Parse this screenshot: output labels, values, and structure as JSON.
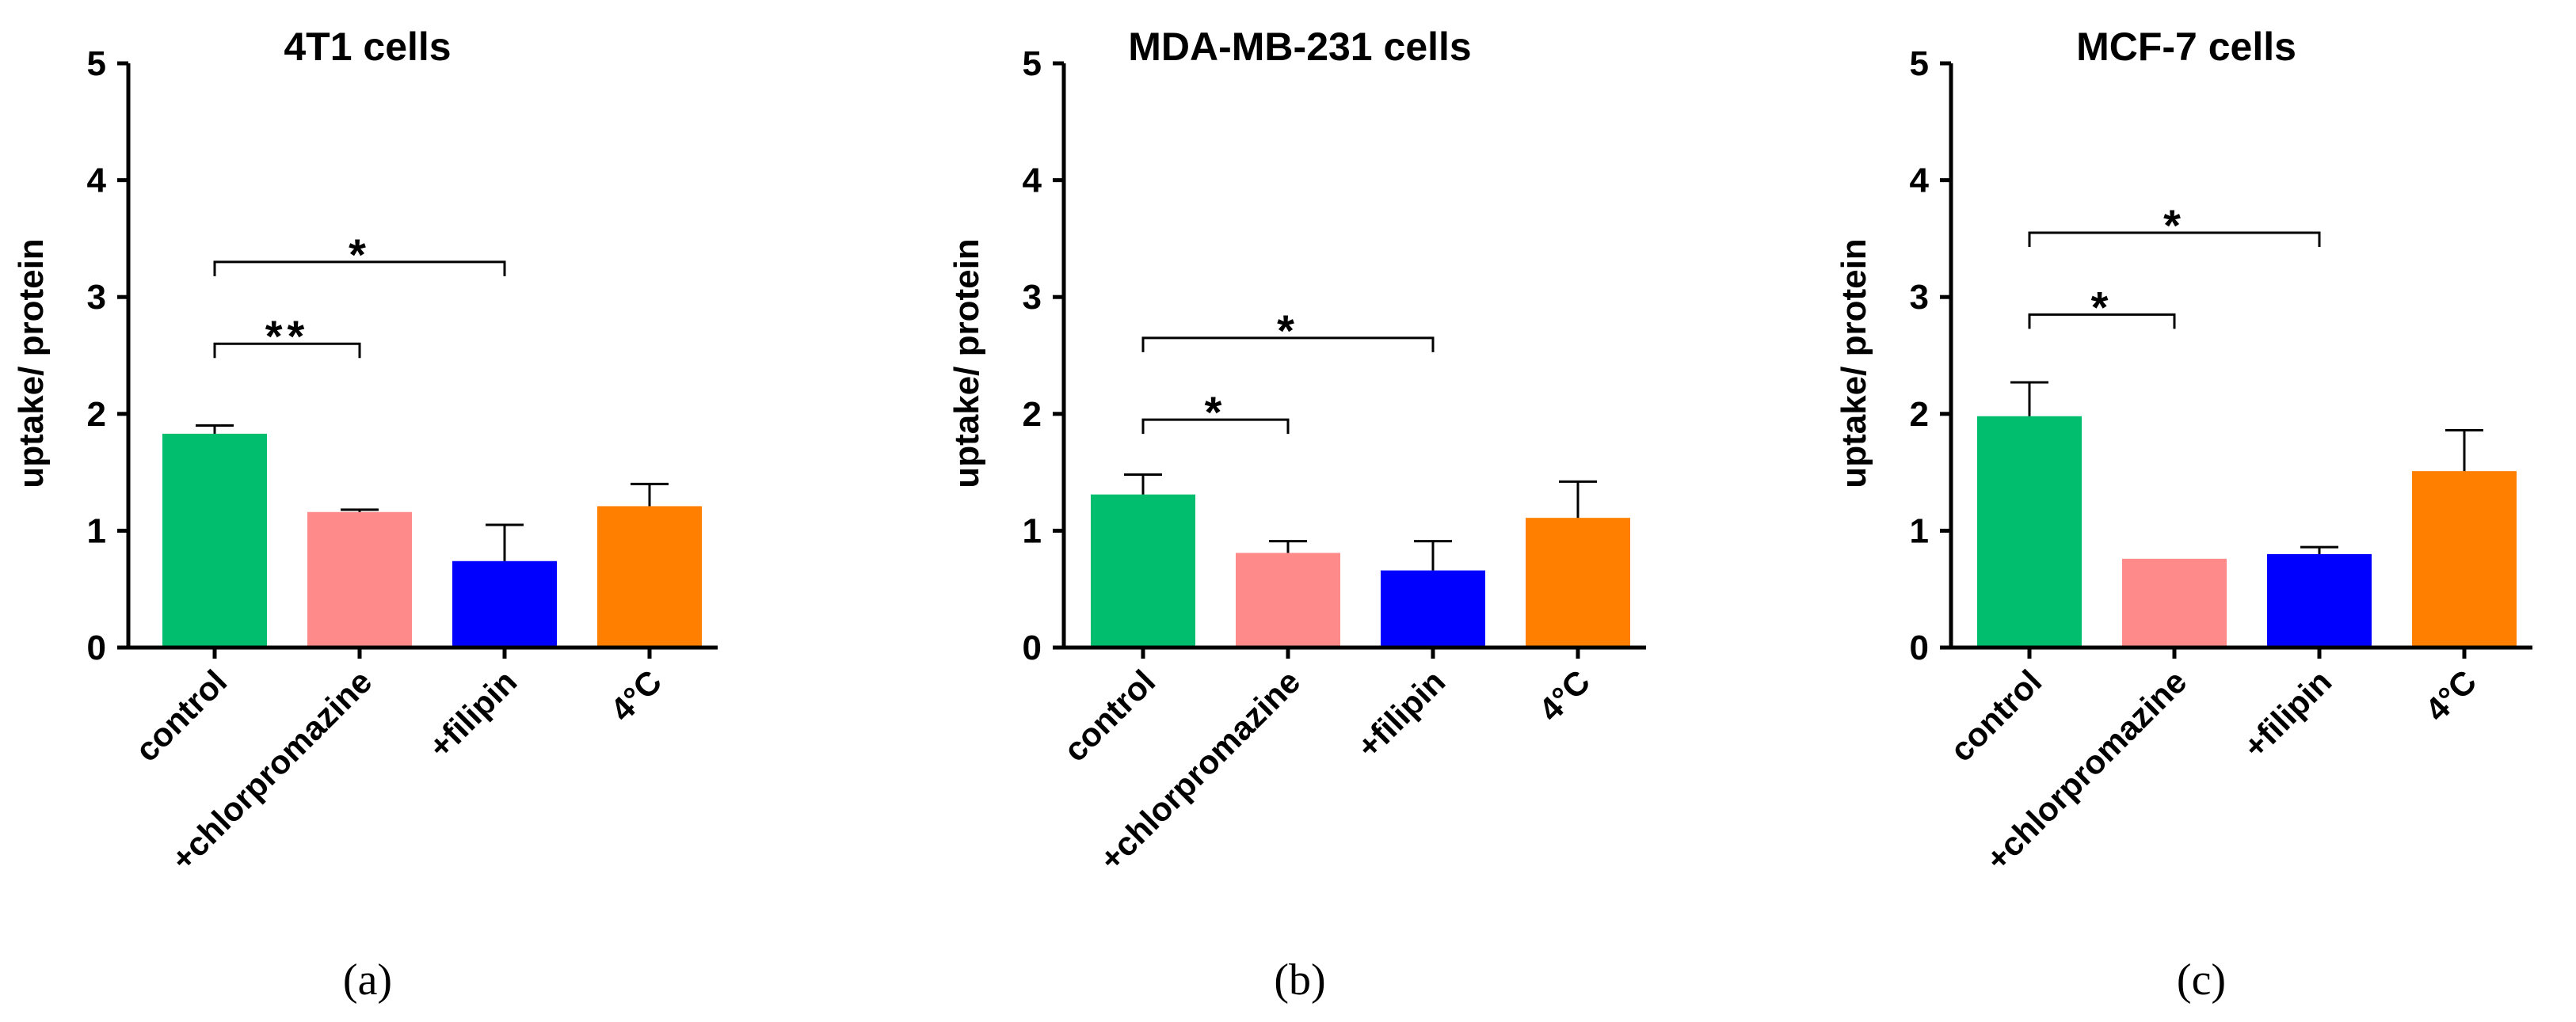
{
  "chart_data": [
    {
      "type": "bar",
      "panel_label": "(a)",
      "title": "4T1 cells",
      "ylabel": "uptake/ protein",
      "xlabel": "",
      "ylim": [
        0,
        5
      ],
      "yticks": [
        "0",
        "1",
        "2",
        "3",
        "4",
        "5"
      ],
      "categories": [
        "control",
        "+chlorpromazine",
        "+filipin",
        "4°C"
      ],
      "colors": [
        "#00be6e",
        "#ff8a8a",
        "#0000ff",
        "#ff8000"
      ],
      "values": [
        1.83,
        1.16,
        0.74,
        1.21
      ],
      "errors": [
        0.07,
        0.02,
        0.31,
        0.19
      ],
      "significance": [
        {
          "from": 0,
          "to": 1,
          "y": 2.6,
          "label": "**"
        },
        {
          "from": 0,
          "to": 2,
          "y": 3.3,
          "label": "*"
        }
      ]
    },
    {
      "type": "bar",
      "panel_label": "(b)",
      "title": "MDA-MB-231 cells",
      "ylabel": "uptake/ protein",
      "xlabel": "",
      "ylim": [
        0,
        5
      ],
      "yticks": [
        "0",
        "1",
        "2",
        "3",
        "4",
        "5"
      ],
      "categories": [
        "control",
        "+chlorpromazine",
        "+filipin",
        "4°C"
      ],
      "colors": [
        "#00be6e",
        "#ff8a8a",
        "#0000ff",
        "#ff8000"
      ],
      "values": [
        1.31,
        0.81,
        0.66,
        1.11
      ],
      "errors": [
        0.17,
        0.1,
        0.25,
        0.31
      ],
      "significance": [
        {
          "from": 0,
          "to": 1,
          "y": 1.95,
          "label": "*"
        },
        {
          "from": 0,
          "to": 2,
          "y": 2.65,
          "label": "*"
        }
      ]
    },
    {
      "type": "bar",
      "panel_label": "(c)",
      "title": "MCF-7 cells",
      "ylabel": "uptake/ protein",
      "xlabel": "",
      "ylim": [
        0,
        5
      ],
      "yticks": [
        "0",
        "1",
        "2",
        "3",
        "4",
        "5"
      ],
      "categories": [
        "control",
        "+chlorpromazine",
        "+filipin",
        "4°C"
      ],
      "colors": [
        "#00be6e",
        "#ff8a8a",
        "#0000ff",
        "#ff8000"
      ],
      "values": [
        1.98,
        0.76,
        0.8,
        1.51
      ],
      "errors": [
        0.29,
        0.0,
        0.06,
        0.35
      ],
      "significance": [
        {
          "from": 0,
          "to": 1,
          "y": 2.85,
          "label": "*"
        },
        {
          "from": 0,
          "to": 2,
          "y": 3.55,
          "label": "*"
        }
      ]
    }
  ]
}
